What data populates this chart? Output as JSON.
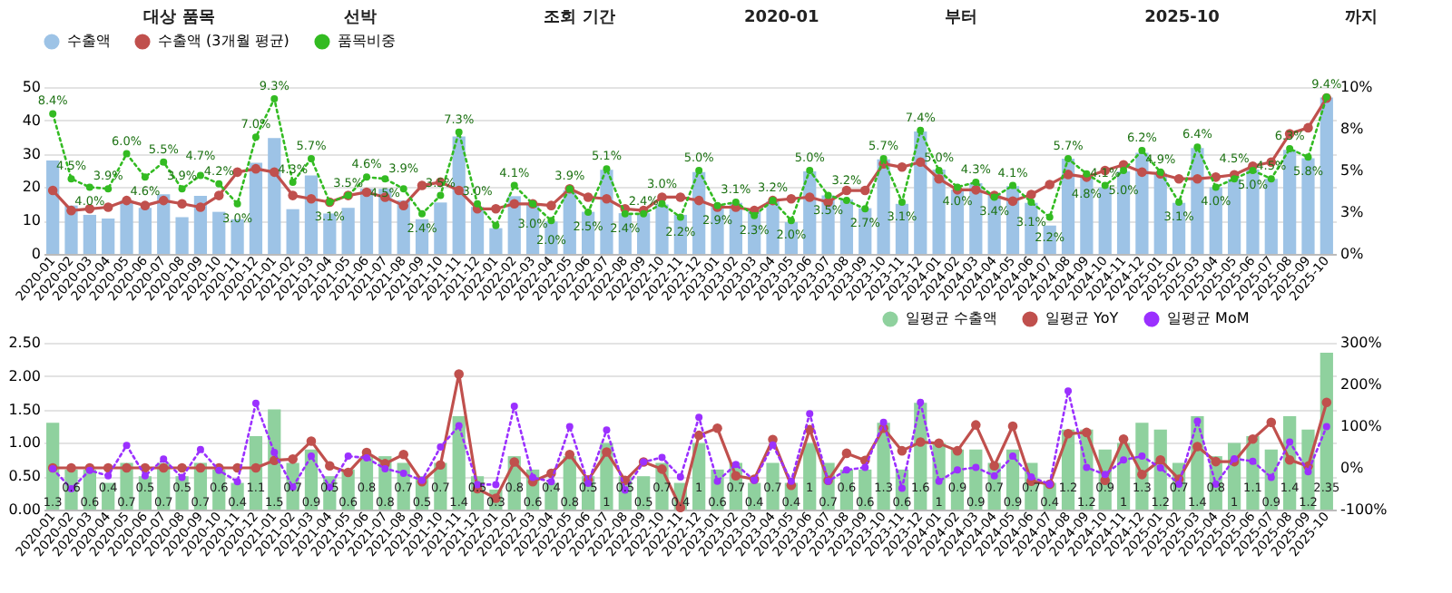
{
  "chart_data": [
    {
      "type": "bar",
      "annotations": [
        "대상 품목",
        "선박",
        "조회 기간",
        "2020-01",
        "부터",
        "2025-10",
        "까지"
      ],
      "categories": [
        "2020-01",
        "2020-02",
        "2020-03",
        "2020-04",
        "2020-05",
        "2020-06",
        "2020-07",
        "2020-08",
        "2020-09",
        "2020-10",
        "2020-11",
        "2020-12",
        "2021-01",
        "2021-02",
        "2021-03",
        "2021-04",
        "2021-05",
        "2021-06",
        "2021-07",
        "2021-08",
        "2021-09",
        "2021-10",
        "2021-11",
        "2021-12",
        "2022-01",
        "2022-02",
        "2022-03",
        "2022-04",
        "2022-05",
        "2022-06",
        "2022-07",
        "2022-08",
        "2022-09",
        "2022-10",
        "2022-11",
        "2022-12",
        "2023-01",
        "2023-02",
        "2023-03",
        "2023-04",
        "2023-05",
        "2023-06",
        "2023-07",
        "2023-08",
        "2023-09",
        "2023-10",
        "2023-11",
        "2023-12",
        "2024-01",
        "2024-02",
        "2024-03",
        "2024-04",
        "2024-05",
        "2024-06",
        "2024-07",
        "2024-08",
        "2024-09",
        "2024-10",
        "2024-11",
        "2024-12",
        "2025-01",
        "2025-02",
        "2025-03",
        "2025-04",
        "2025-05",
        "2025-06",
        "2025-07",
        "2025-08",
        "2025-09",
        "2025-10"
      ],
      "series": [
        {
          "name": "수출액",
          "color": "#9dc3e6",
          "values": [
            28.0,
            14.5,
            11.7,
            10.6,
            16.0,
            13.8,
            17.9,
            11.0,
            17.4,
            12.6,
            10.4,
            27.3,
            34.7,
            13.4,
            23.5,
            12.1,
            13.8,
            19.5,
            19.5,
            16.0,
            10.4,
            15.4,
            35.2,
            14.1,
            7.7,
            17.3,
            15.1,
            9.7,
            19.0,
            12.6,
            25.2,
            12.2,
            12.2,
            14.8,
            11.7,
            24.5,
            14.5,
            15.3,
            12.8,
            15.8,
            9.5,
            24.7,
            17.5,
            16.3,
            13.7,
            28.3,
            15.0,
            36.7,
            25.3,
            19.2,
            21.2,
            18.0,
            20.3,
            15.3,
            8.5,
            28.5,
            23.3,
            20.0,
            24.7,
            30.3,
            24.2,
            15.3,
            31.7,
            20.0,
            22.5,
            25.3,
            22.5,
            31.2,
            28.7,
            46.9
          ]
        },
        {
          "name": "수출액 (3개월 평균)",
          "type": "line",
          "color": "#c0504d",
          "marker": "circle",
          "line_style": "solid",
          "values": [
            19,
            13,
            13.5,
            14,
            16,
            14.5,
            16,
            15,
            14,
            17.5,
            24.5,
            25.5,
            24.5,
            17.5,
            16.5,
            15.5,
            17.5,
            18.5,
            17,
            14.5,
            20.5,
            21.5,
            19,
            13.5,
            13.5,
            15,
            15,
            14.5,
            19.5,
            17,
            16.5,
            13.5,
            13,
            17,
            17,
            16,
            14,
            14,
            13,
            16,
            16.5,
            17,
            15.5,
            19,
            19,
            27,
            26,
            27.5,
            22.5,
            19.2,
            19.2,
            17.5,
            15.8,
            17.8,
            20.8,
            23.8,
            23,
            25,
            26.7,
            24.5,
            24,
            22.5,
            22.5,
            23,
            23.7,
            26.3,
            27.5,
            36,
            37.8,
            46.7
          ]
        },
        {
          "name": "품목비중",
          "type": "line",
          "axis": "y2",
          "color": "#33bb22",
          "marker": "circle",
          "line_style": "dotted",
          "values": [
            8.4,
            4.5,
            4.0,
            3.9,
            6.0,
            4.6,
            5.5,
            3.9,
            4.7,
            4.2,
            3.0,
            7.0,
            9.3,
            4.3,
            5.7,
            3.1,
            3.5,
            4.6,
            4.5,
            3.9,
            2.4,
            3.5,
            7.3,
            3.0,
            1.7,
            4.1,
            3.0,
            2.0,
            3.9,
            2.5,
            5.1,
            2.4,
            2.4,
            3.0,
            2.2,
            5.0,
            2.9,
            3.1,
            2.3,
            3.2,
            2.0,
            5.0,
            3.5,
            3.2,
            2.7,
            5.7,
            3.1,
            7.4,
            5.0,
            4.0,
            4.3,
            3.4,
            4.1,
            3.1,
            2.2,
            5.7,
            4.8,
            4.1,
            5.0,
            6.2,
            4.9,
            3.1,
            6.4,
            4.0,
            4.5,
            5.0,
            4.5,
            6.3,
            5.8,
            9.4
          ],
          "value_labels": [
            "8.4%",
            "4.5%",
            "4.0%",
            "3.9%",
            "6.0%",
            "4.6%",
            "5.5%",
            "3.9%",
            "4.7%",
            "4.2%",
            "3.0%",
            "7.0%",
            "9.3%",
            "4.3%",
            "5.7%",
            "3.1%",
            "3.5%",
            "4.6%",
            "4.5%",
            "3.9%",
            "2.4%",
            "3.5%",
            "7.3%",
            "3.0%",
            null,
            "4.1%",
            "3.0%",
            "2.0%",
            "3.9%",
            "2.5%",
            "5.1%",
            "2.4%",
            "2.4%",
            "3.0%",
            "2.2%",
            "5.0%",
            "2.9%",
            "3.1%",
            "2.3%",
            "3.2%",
            "2.0%",
            "5.0%",
            "3.5%",
            "3.2%",
            "2.7%",
            "5.7%",
            "3.1%",
            "7.4%",
            "5.0%",
            "4.0%",
            "4.3%",
            "3.4%",
            "4.1%",
            "3.1%",
            "2.2%",
            "5.7%",
            "4.8%",
            "4.1%",
            "5.0%",
            "6.2%",
            "4.9%",
            "3.1%",
            "6.4%",
            "4.0%",
            "4.5%",
            "5.0%",
            "4.5%",
            "6.3%",
            "5.8%",
            "9.4%"
          ]
        }
      ],
      "ylim": [
        0,
        50
      ],
      "yticks": [
        0,
        10,
        20,
        30,
        40,
        50
      ],
      "y2lim": [
        0,
        10
      ],
      "y2ticks": [
        {
          "value": 0,
          "label": "0%"
        },
        {
          "value": 2.5,
          "label": "3%"
        },
        {
          "value": 5,
          "label": "5%"
        },
        {
          "value": 7.5,
          "label": "8%"
        },
        {
          "value": 10,
          "label": "10%"
        }
      ],
      "grid": "y",
      "legend": "top"
    },
    {
      "type": "bar",
      "categories": [
        "2020-01",
        "2020-02",
        "2020-03",
        "2020-04",
        "2020-05",
        "2020-06",
        "2020-07",
        "2020-08",
        "2020-09",
        "2020-10",
        "2020-11",
        "2020-12",
        "2021-01",
        "2021-02",
        "2021-03",
        "2021-04",
        "2021-05",
        "2021-06",
        "2021-07",
        "2021-08",
        "2021-09",
        "2021-10",
        "2021-11",
        "2021-12",
        "2022-01",
        "2022-02",
        "2022-03",
        "2022-04",
        "2022-05",
        "2022-06",
        "2022-07",
        "2022-08",
        "2022-09",
        "2022-10",
        "2022-11",
        "2022-12",
        "2023-01",
        "2023-02",
        "2023-03",
        "2023-04",
        "2023-05",
        "2023-06",
        "2023-07",
        "2023-08",
        "2023-09",
        "2023-10",
        "2023-11",
        "2023-12",
        "2024-01",
        "2024-02",
        "2024-03",
        "2024-04",
        "2024-05",
        "2024-06",
        "2024-07",
        "2024-08",
        "2024-09",
        "2024-10",
        "2024-11",
        "2024-12",
        "2025-01",
        "2025-02",
        "2025-03",
        "2025-04",
        "2025-05",
        "2025-06",
        "2025-07",
        "2025-08",
        "2025-09",
        "2025-10"
      ],
      "series": [
        {
          "name": "일평균 수출액",
          "color": "#8fd19e",
          "data_labels": true,
          "values": [
            1.3,
            0.6,
            0.6,
            0.4,
            0.7,
            0.5,
            0.7,
            0.5,
            0.7,
            0.6,
            0.4,
            1.1,
            1.5,
            0.7,
            0.9,
            0.5,
            0.6,
            0.8,
            0.8,
            0.7,
            0.5,
            0.7,
            1.4,
            0.5,
            0.3,
            0.8,
            0.6,
            0.4,
            0.8,
            0.5,
            1.0,
            0.5,
            0.5,
            0.7,
            0.4,
            1.0,
            0.6,
            0.7,
            0.4,
            0.7,
            0.4,
            1.0,
            0.7,
            0.6,
            0.6,
            1.3,
            0.6,
            1.6,
            1.0,
            0.9,
            0.9,
            0.7,
            0.9,
            0.7,
            0.4,
            1.2,
            1.2,
            0.9,
            1.0,
            1.3,
            1.2,
            0.7,
            1.4,
            0.8,
            1.0,
            1.1,
            0.9,
            1.4,
            1.2,
            2.35
          ]
        },
        {
          "name": "일평균 YoY",
          "type": "line",
          "axis": "y2",
          "color": "#c0504d",
          "marker": "circle",
          "line_style": "solid",
          "values": [
            0,
            0,
            0,
            0,
            0,
            0,
            0,
            0,
            0,
            0,
            0,
            0,
            18,
            21,
            64,
            5,
            -11,
            37,
            10,
            32,
            -33,
            7,
            225,
            -50,
            -73,
            14,
            -33,
            -13,
            32,
            -29,
            38,
            -30,
            14,
            -3,
            -95,
            78,
            95,
            -19,
            -27,
            68,
            -42,
            92,
            -30,
            35,
            18,
            95,
            41,
            62,
            59,
            41,
            103,
            5,
            100,
            -32,
            -39,
            82,
            85,
            -30,
            69,
            -16,
            19,
            -27,
            51,
            15,
            15,
            69,
            109,
            19,
            4,
            157
          ]
        },
        {
          "name": "일평균 MoM",
          "type": "line",
          "axis": "y2",
          "color": "#9b30ff",
          "marker": "circle",
          "line_style": "dotted",
          "values": [
            -2,
            -50,
            -6,
            -19,
            54,
            -19,
            21,
            -23,
            44,
            -6,
            -33,
            155,
            37,
            -46,
            28,
            -46,
            28,
            24,
            -2,
            -13,
            -30,
            50,
            101,
            -40,
            -40,
            148,
            -23,
            -33,
            99,
            -37,
            91,
            -53,
            14,
            25,
            -22,
            121,
            -32,
            8,
            -30,
            55,
            -32,
            130,
            -32,
            -5,
            1,
            109,
            -49,
            157,
            -32,
            -5,
            1,
            -19,
            28,
            -22,
            -39,
            184,
            1,
            -16,
            19,
            28,
            0,
            -39,
            112,
            -39,
            22,
            16,
            -23,
            62,
            -9,
            99
          ]
        }
      ],
      "ylim": [
        0,
        2.5
      ],
      "yticks": [
        {
          "value": 0,
          "label": "0.00"
        },
        {
          "value": 0.5,
          "label": "0.50"
        },
        {
          "value": 1,
          "label": "1.00"
        },
        {
          "value": 1.5,
          "label": "1.50"
        },
        {
          "value": 2,
          "label": "2.00"
        },
        {
          "value": 2.5,
          "label": "2.50"
        }
      ],
      "y2lim": [
        -100,
        300
      ],
      "y2ticks": [
        {
          "value": -100,
          "label": "-100%"
        },
        {
          "value": 0,
          "label": "0%"
        },
        {
          "value": 100,
          "label": "100%"
        },
        {
          "value": 200,
          "label": "200%"
        },
        {
          "value": 300,
          "label": "300%"
        }
      ],
      "grid": "y",
      "legend": "top right"
    }
  ]
}
